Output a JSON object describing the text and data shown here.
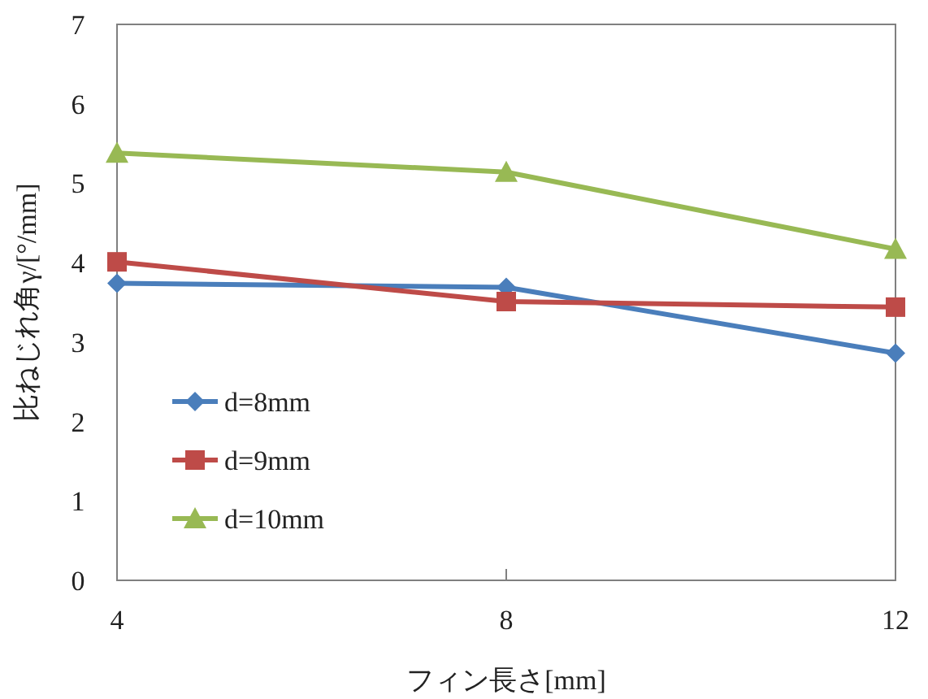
{
  "chart_data": {
    "type": "line",
    "xlabel": "フィン長さ[mm]",
    "ylabel": "比ねじれ角γ/[°/mm]",
    "x": [
      4,
      8,
      12
    ],
    "xlim": [
      4,
      12
    ],
    "xticks": [
      4,
      8,
      12
    ],
    "ylim": [
      0,
      7
    ],
    "yticks": [
      0,
      1,
      2,
      3,
      4,
      5,
      6,
      7
    ],
    "grid": false,
    "legend": "bottom left",
    "line_style": "solid",
    "series": [
      {
        "name": "d=8mm",
        "color": "#4a7ebb",
        "marker": "diamond",
        "values": [
          3.74,
          3.69,
          2.86
        ]
      },
      {
        "name": "d=9mm",
        "color": "#be4b48",
        "marker": "square",
        "values": [
          4.01,
          3.51,
          3.44
        ]
      },
      {
        "name": "d=10mm",
        "color": "#98b954",
        "marker": "triangle",
        "values": [
          5.38,
          5.14,
          4.17
        ]
      }
    ]
  }
}
